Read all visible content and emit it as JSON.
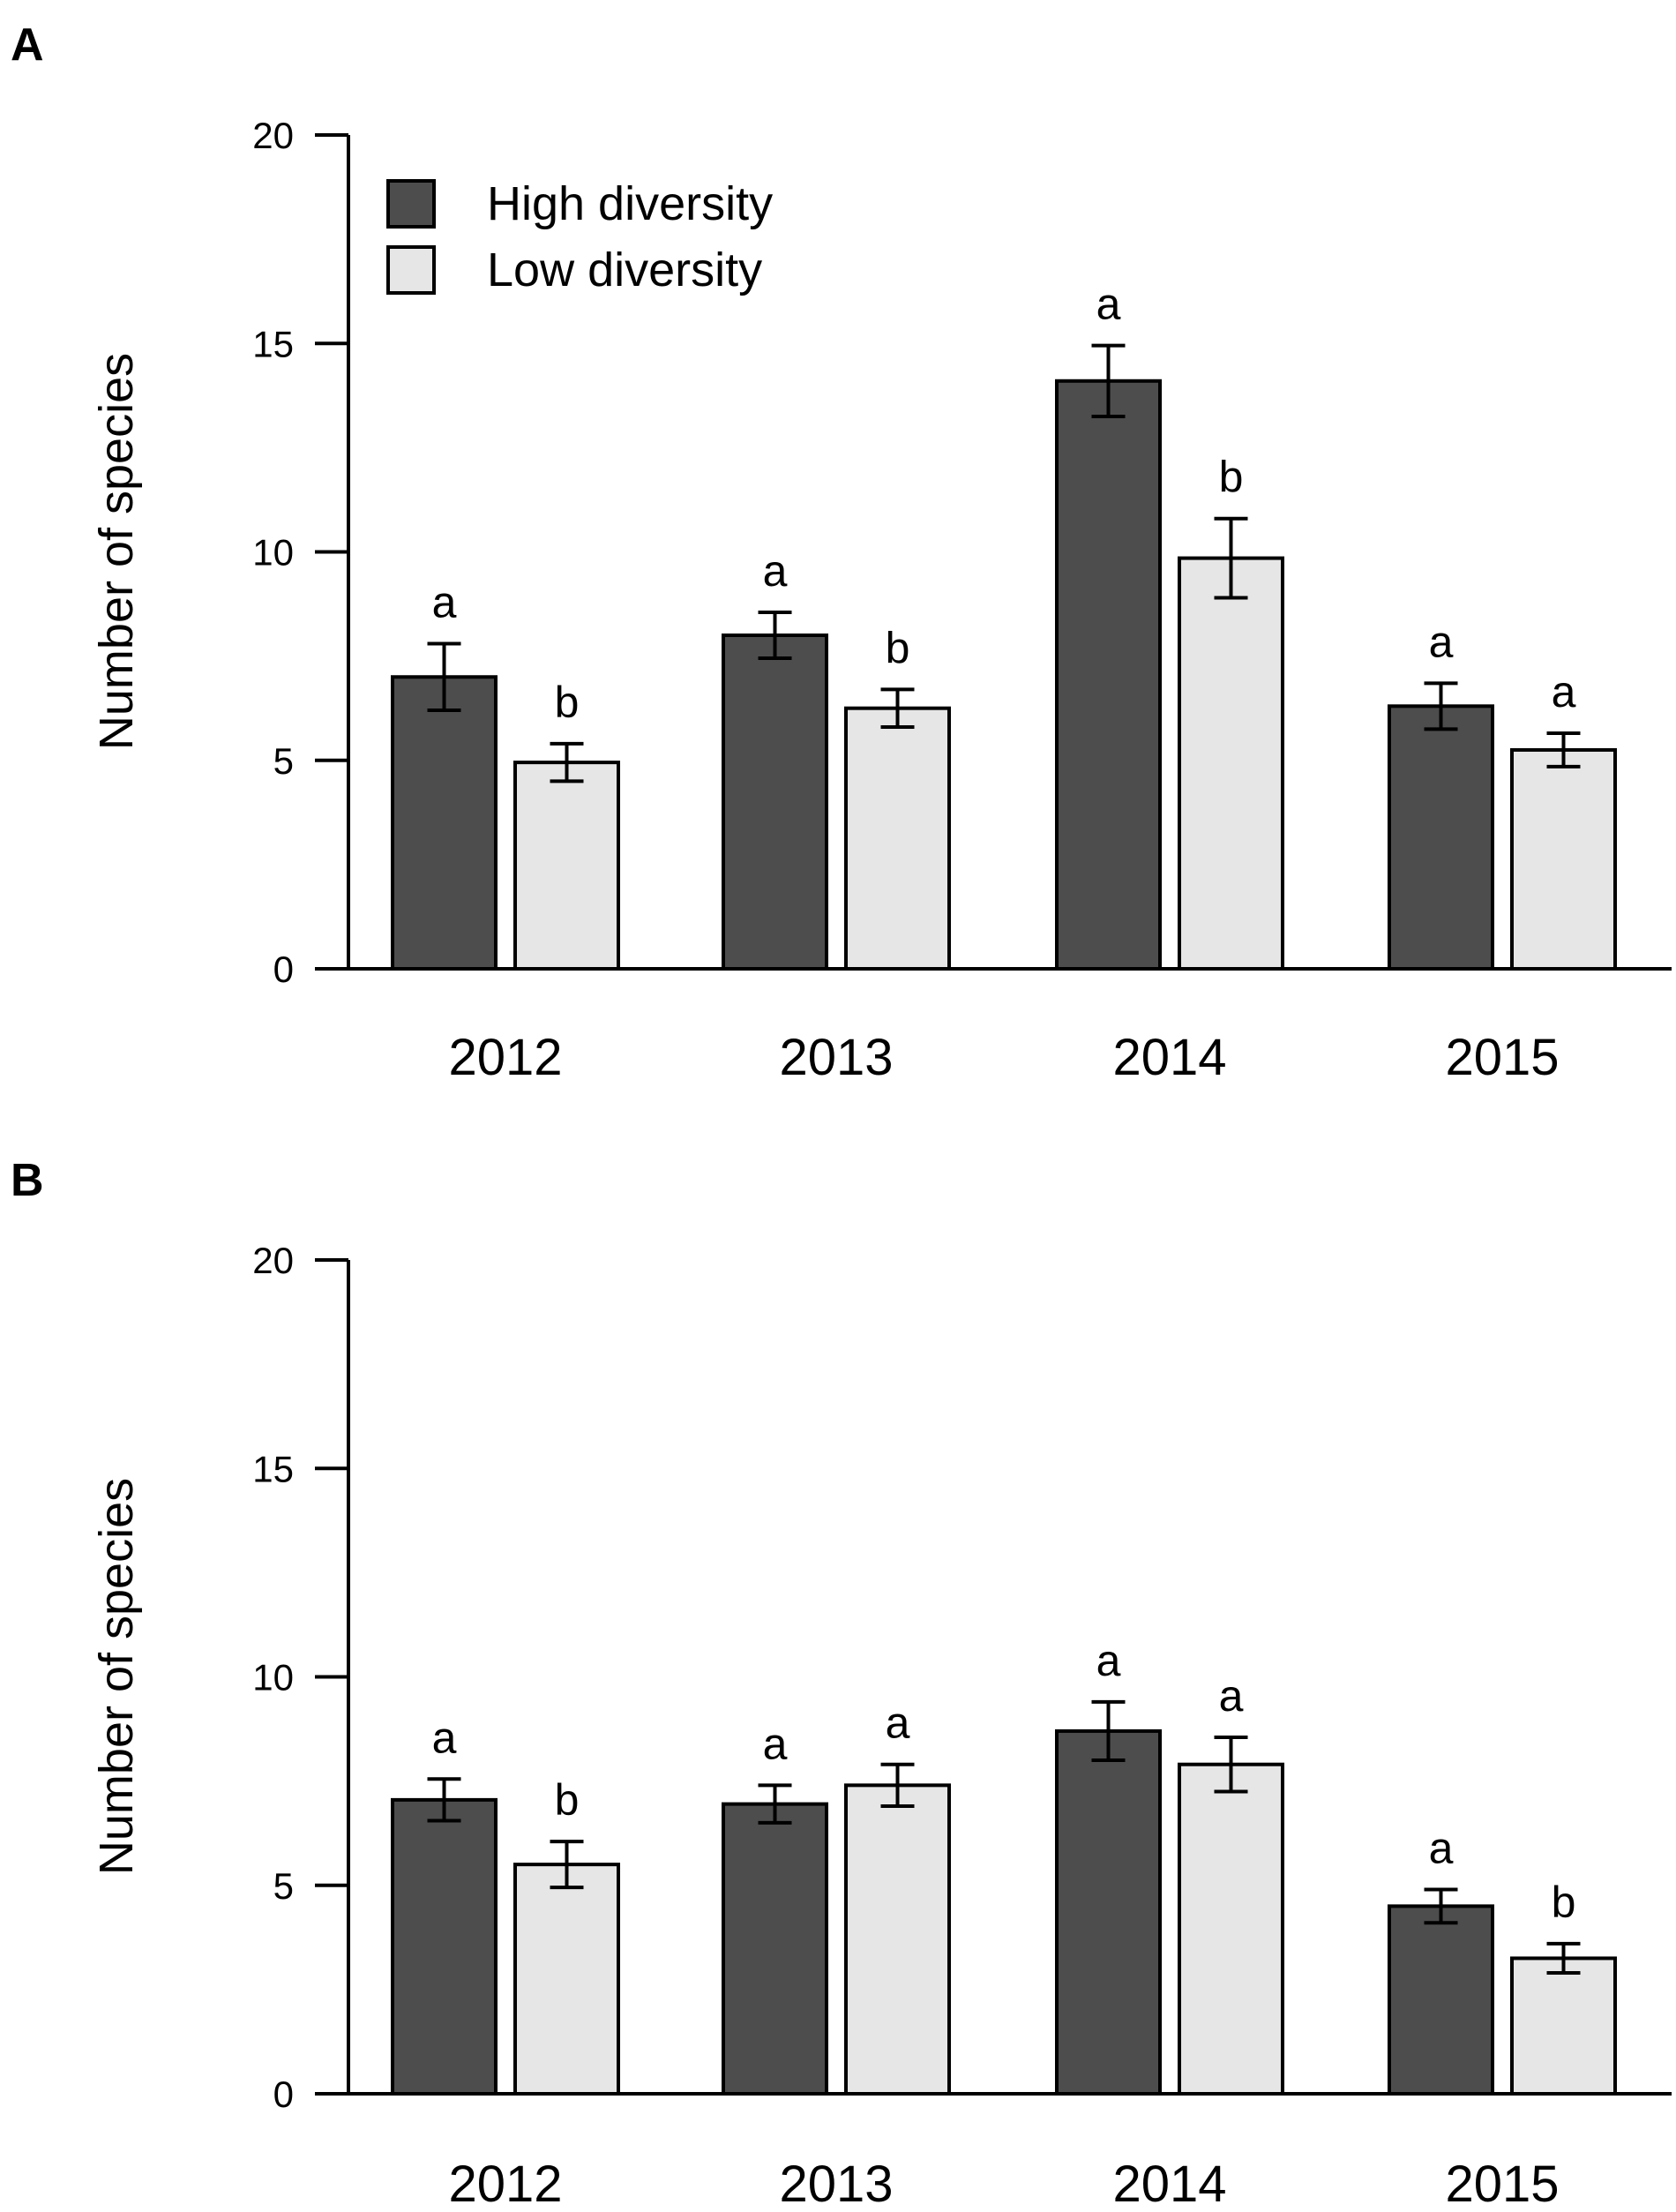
{
  "chart_data": [
    {
      "panel": "A",
      "type": "bar",
      "title": "",
      "xlabel": "",
      "ylabel": "Number of species",
      "ylim": [
        0,
        20
      ],
      "yticks": [
        0,
        5,
        10,
        15,
        20
      ],
      "categories": [
        "2012",
        "2013",
        "2014",
        "2015"
      ],
      "legend_position": "top-left",
      "series": [
        {
          "name": "High diversity",
          "color": "#4d4d4d",
          "values": [
            7.0,
            8.0,
            14.1,
            6.3
          ],
          "errors": [
            0.8,
            0.55,
            0.85,
            0.55
          ],
          "letters": [
            "a",
            "a",
            "a",
            "a"
          ]
        },
        {
          "name": "Low diversity",
          "color": "#e6e6e6",
          "values": [
            4.95,
            6.25,
            9.85,
            5.25
          ],
          "errors": [
            0.45,
            0.45,
            0.95,
            0.4
          ],
          "letters": [
            "b",
            "b",
            "b",
            "a"
          ]
        }
      ]
    },
    {
      "panel": "B",
      "type": "bar",
      "title": "",
      "xlabel": "",
      "ylabel": "Number of species",
      "ylim": [
        0,
        20
      ],
      "yticks": [
        0,
        5,
        10,
        15,
        20
      ],
      "categories": [
        "2012",
        "2013",
        "2014",
        "2015"
      ],
      "series": [
        {
          "name": "High diversity",
          "color": "#4d4d4d",
          "values": [
            7.05,
            6.95,
            8.7,
            4.5
          ],
          "errors": [
            0.5,
            0.45,
            0.7,
            0.4
          ],
          "letters": [
            "a",
            "a",
            "a",
            "a"
          ]
        },
        {
          "name": "Low diversity",
          "color": "#e6e6e6",
          "values": [
            5.5,
            7.4,
            7.9,
            3.25
          ],
          "errors": [
            0.55,
            0.5,
            0.65,
            0.35
          ],
          "letters": [
            "b",
            "a",
            "a",
            "b"
          ]
        }
      ]
    }
  ]
}
